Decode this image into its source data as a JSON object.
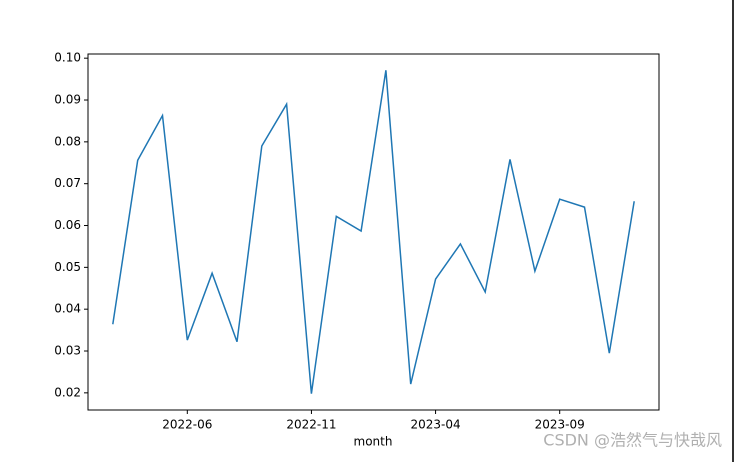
{
  "chart_data": {
    "type": "line",
    "x_label": "month",
    "x": [
      "2022-03",
      "2022-04",
      "2022-05",
      "2022-06",
      "2022-07",
      "2022-08",
      "2022-09",
      "2022-10",
      "2022-11",
      "2022-12",
      "2023-01",
      "2023-02",
      "2023-03",
      "2023-04",
      "2023-05",
      "2023-06",
      "2023-07",
      "2023-08",
      "2023-09",
      "2023-10",
      "2023-11",
      "2023-12"
    ],
    "series": [
      {
        "color": "#1f77b4",
        "values": [
          0.0364,
          0.0756,
          0.0863,
          0.0326,
          0.0486,
          0.0322,
          0.079,
          0.089,
          0.0198,
          0.0622,
          0.0587,
          0.0971,
          0.0221,
          0.0472,
          0.0556,
          0.0441,
          0.0758,
          0.0491,
          0.0663,
          0.0644,
          0.0295,
          0.0658
        ]
      }
    ],
    "xlim": [
      "2022-02",
      "2024-01"
    ],
    "xticks": [
      "2022-06",
      "2022-11",
      "2023-04",
      "2023-09"
    ],
    "ylim": [
      0.0159,
      0.101
    ],
    "yticks": [
      0.02,
      0.03,
      0.04,
      0.05,
      0.06,
      0.07,
      0.08,
      0.09,
      {
        "value": 0.1,
        "label": "0.10"
      }
    ],
    "watermark": "CSDN @浩然气与快哉风"
  }
}
